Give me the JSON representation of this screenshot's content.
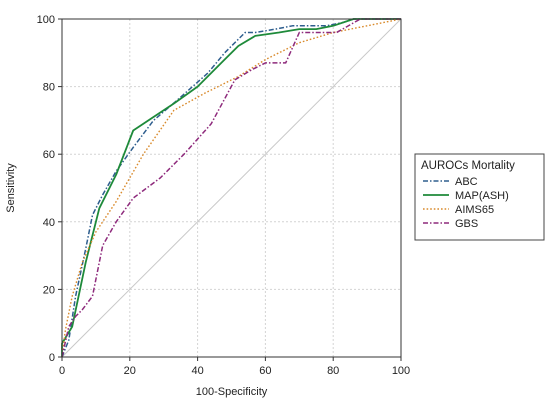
{
  "chart_data": {
    "type": "line",
    "xlabel": "100-Specificity",
    "ylabel": "Sensitivity",
    "xlim": [
      0,
      100
    ],
    "ylim": [
      0,
      100
    ],
    "xticks": [
      0,
      20,
      40,
      60,
      80,
      100
    ],
    "yticks": [
      0,
      20,
      40,
      60,
      80,
      100
    ],
    "grid": true,
    "legend": {
      "title": "AUROCs Mortality",
      "placement": "right"
    },
    "reference_line": {
      "x": [
        0,
        100
      ],
      "y": [
        0,
        100
      ],
      "color": "#c8c8c8"
    },
    "series": [
      {
        "name": "ABC",
        "color": "#2e5e8e",
        "dash": "dash-dot",
        "x": [
          0,
          2,
          4,
          7,
          9,
          12,
          16,
          21,
          27,
          34,
          43,
          48,
          54,
          57,
          63,
          68,
          72,
          78,
          83,
          86,
          100
        ],
        "y": [
          0,
          5,
          18,
          32,
          42,
          48,
          55,
          62,
          70,
          76,
          84,
          90,
          96,
          96,
          97,
          98,
          98,
          98,
          99,
          100,
          100
        ]
      },
      {
        "name": "MAP(ASH)",
        "color": "#1e8a3a",
        "dash": "solid",
        "x": [
          0,
          0,
          3,
          7,
          11,
          16,
          21,
          27,
          33,
          40,
          47,
          52,
          57,
          64,
          70,
          75,
          80,
          86,
          100
        ],
        "y": [
          0,
          4,
          9,
          28,
          44,
          54,
          67,
          71,
          75,
          80,
          87,
          92,
          95,
          96,
          97,
          97,
          98,
          100,
          100
        ]
      },
      {
        "name": "AIMS65",
        "color": "#d98a2b",
        "dash": "dotted",
        "x": [
          0,
          1,
          3,
          6,
          10,
          16,
          24,
          33,
          42,
          52,
          60,
          70,
          80,
          90,
          100
        ],
        "y": [
          0,
          8,
          18,
          28,
          37,
          46,
          60,
          73,
          78,
          83,
          88,
          93,
          96,
          98,
          100
        ]
      },
      {
        "name": "GBS",
        "color": "#8e2a7c",
        "dash": "dash-dot",
        "x": [
          0,
          2,
          4,
          6,
          9,
          12,
          16,
          21,
          29,
          36,
          44,
          51,
          56,
          60,
          66,
          70,
          76,
          81,
          88,
          100
        ],
        "y": [
          0,
          9,
          12,
          14,
          18,
          33,
          40,
          47,
          53,
          60,
          69,
          82,
          85,
          87,
          87,
          96,
          96,
          96,
          100,
          100
        ]
      }
    ]
  }
}
